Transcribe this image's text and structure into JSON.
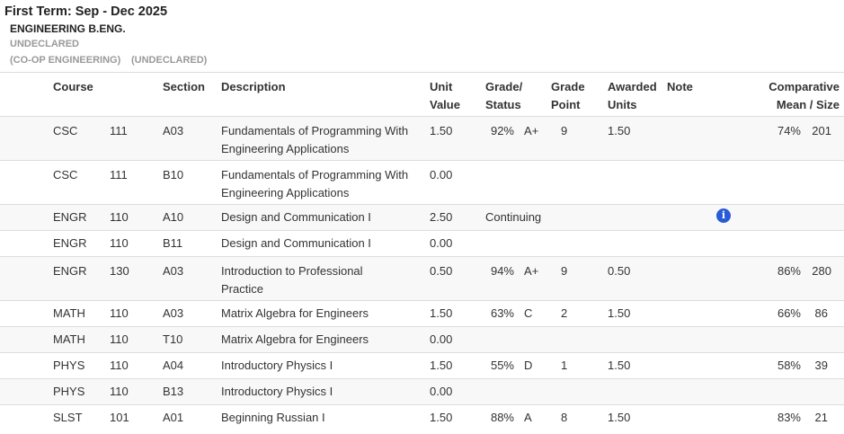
{
  "term": {
    "title": "First Term: Sep - Dec 2025",
    "program": "ENGINEERING B.ENG.",
    "major": "UNDECLARED",
    "option": "(CO-OP ENGINEERING)",
    "option_major": "(UNDECLARED)"
  },
  "columns": {
    "course": "Course",
    "section": "Section",
    "description": "Description",
    "unit_value_1": "Unit",
    "unit_value_2": "Value",
    "grade_status_1": "Grade/",
    "grade_status_2": "Status",
    "grade_point_1": "Grade",
    "grade_point_2": "Point",
    "awarded_units_1": "Awarded",
    "awarded_units_2": "Units",
    "note": "Note",
    "comparative_1": "Comparative",
    "comparative_2": "Mean / Size"
  },
  "rows": [
    {
      "subject": "CSC",
      "number": "111",
      "section": "A03",
      "description": "Fundamentals of Programming With Engineering Applications",
      "unit_value": "1.50",
      "percent": "92%",
      "grade": "A+",
      "grade_point": "9",
      "awarded_units": "1.50",
      "mean": "74%",
      "size": "201"
    },
    {
      "subject": "CSC",
      "number": "111",
      "section": "B10",
      "description": "Fundamentals of Programming With Engineering Applications",
      "unit_value": "0.00"
    },
    {
      "subject": "ENGR",
      "number": "110",
      "section": "A10",
      "description": "Design and Communication I",
      "unit_value": "2.50",
      "status": "Continuing",
      "note_icon": "info-icon"
    },
    {
      "subject": "ENGR",
      "number": "110",
      "section": "B11",
      "description": "Design and Communication I",
      "unit_value": "0.00"
    },
    {
      "subject": "ENGR",
      "number": "130",
      "section": "A03",
      "description": "Introduction to Professional Practice",
      "unit_value": "0.50",
      "percent": "94%",
      "grade": "A+",
      "grade_point": "9",
      "awarded_units": "0.50",
      "mean": "86%",
      "size": "280"
    },
    {
      "subject": "MATH",
      "number": "110",
      "section": "A03",
      "description": "Matrix Algebra for Engineers",
      "unit_value": "1.50",
      "percent": "63%",
      "grade": "C",
      "grade_point": "2",
      "awarded_units": "1.50",
      "mean": "66%",
      "size": "86"
    },
    {
      "subject": "MATH",
      "number": "110",
      "section": "T10",
      "description": "Matrix Algebra for Engineers",
      "unit_value": "0.00"
    },
    {
      "subject": "PHYS",
      "number": "110",
      "section": "A04",
      "description": "Introductory Physics I",
      "unit_value": "1.50",
      "percent": "55%",
      "grade": "D",
      "grade_point": "1",
      "awarded_units": "1.50",
      "mean": "58%",
      "size": "39"
    },
    {
      "subject": "PHYS",
      "number": "110",
      "section": "B13",
      "description": "Introductory Physics I",
      "unit_value": "0.00"
    },
    {
      "subject": "SLST",
      "number": "101",
      "section": "A01",
      "description": "Beginning Russian I",
      "unit_value": "1.50",
      "percent": "88%",
      "grade": "A",
      "grade_point": "8",
      "awarded_units": "1.50",
      "mean": "83%",
      "size": "21"
    }
  ],
  "colors": {
    "border": "#dddddd",
    "row_alt": "#f8f8f8",
    "info_icon": "#2a5bd7"
  }
}
